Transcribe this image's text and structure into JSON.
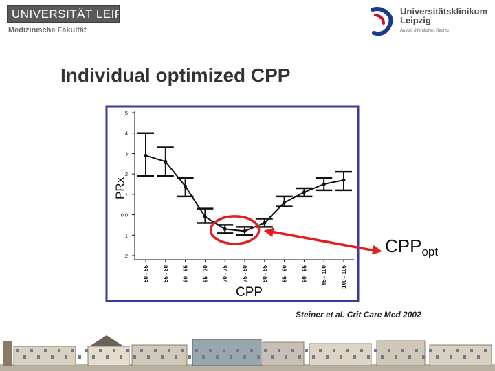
{
  "header": {
    "university": "UNIVERSITÄT LEIPZIG",
    "faculty": "Medizinische Fakultät",
    "hospital_line1": "Universitätsklinikum",
    "hospital_line2": "Leipzig",
    "hospital_sub": "Anstalt öffentlichen Rechts"
  },
  "slide": {
    "title": "Individual optimized CPP",
    "citation": "Steiner et al. Crit Care Med 2002",
    "cppopt_main": "CPP",
    "cppopt_sub": "opt"
  },
  "colors": {
    "accent": "#e02020",
    "chart_border": "#3a3a9a",
    "logo_gray": "#58595b"
  },
  "chart_data": {
    "type": "line",
    "xlabel": "CPP",
    "ylabel": "PRx",
    "categories": [
      "50 - 55",
      "55 - 60",
      "60 - 65",
      "65 - 70",
      "70 - 75",
      "75 - 80",
      "80 - 85",
      "85 - 90",
      "90 - 95",
      "95 - 100",
      "100 - 105"
    ],
    "values": [
      0.29,
      0.26,
      0.14,
      -0.01,
      -0.07,
      -0.08,
      -0.04,
      0.06,
      0.11,
      0.15,
      0.17
    ],
    "lower": [
      0.19,
      0.19,
      0.09,
      -0.04,
      -0.09,
      -0.1,
      -0.06,
      0.04,
      0.09,
      0.12,
      0.12
    ],
    "upper": [
      0.4,
      0.33,
      0.18,
      0.03,
      -0.05,
      -0.06,
      -0.02,
      0.09,
      0.13,
      0.18,
      0.21
    ],
    "ylim": [
      -0.2,
      0.5
    ],
    "yticks": [
      ".5",
      ".4",
      ".3",
      ".2",
      ".1",
      "0.0",
      "-.1",
      "-.2"
    ],
    "highlight_categories": [
      "70 - 75",
      "75 - 80"
    ],
    "grid": false
  }
}
